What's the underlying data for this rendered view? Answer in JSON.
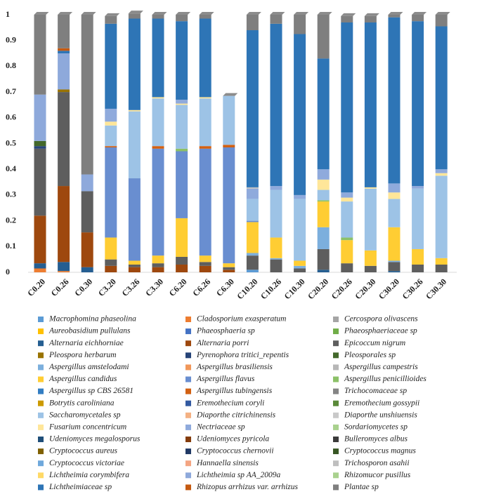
{
  "chart_data": {
    "type": "stacked_bar",
    "categories": [
      "C0.20",
      "C0.26",
      "C0.30",
      "C3.20",
      "C3.26",
      "C3.30",
      "C6.20",
      "C6.26",
      "C6.30",
      "C10.20",
      "C10.26",
      "C10.30",
      "C20.20",
      "C20.26",
      "C20.30",
      "C30.20",
      "C30.26",
      "C30.30"
    ],
    "ylim": [
      0,
      1
    ],
    "yticks": [
      0,
      0.1,
      0.2,
      0.3,
      0.4,
      0.5,
      0.6,
      0.7,
      0.8,
      0.9,
      1
    ],
    "series": [
      {
        "name": "Macrophomina phaseolina",
        "color": "#5b9bd5",
        "values": [
          0,
          0,
          0,
          0,
          0,
          0,
          0,
          0,
          0,
          0.01,
          0,
          0,
          0,
          0,
          0,
          0,
          0,
          0
        ]
      },
      {
        "name": "Cladosporium exasperatum",
        "color": "#ed7d31",
        "values": [
          0.015,
          0.005,
          0,
          0,
          0,
          0,
          0,
          0,
          0,
          0,
          0,
          0,
          0,
          0,
          0,
          0,
          0,
          0
        ]
      },
      {
        "name": "Cercospora olivascens",
        "color": "#a5a5a5",
        "values": [
          0,
          0,
          0,
          0,
          0,
          0,
          0,
          0,
          0,
          0,
          0,
          0,
          0,
          0,
          0,
          0,
          0,
          0
        ]
      },
      {
        "name": "Aureobasidium pullulans",
        "color": "#ffc000",
        "values": [
          0,
          0,
          0,
          0,
          0,
          0,
          0,
          0,
          0,
          0,
          0,
          0,
          0,
          0,
          0,
          0,
          0,
          0
        ]
      },
      {
        "name": "Phaeosphaeria sp",
        "color": "#4472c4",
        "values": [
          0,
          0,
          0,
          0,
          0,
          0,
          0,
          0,
          0,
          0,
          0,
          0,
          0,
          0,
          0,
          0,
          0,
          0
        ]
      },
      {
        "name": "Phaeosphaeriaceae sp",
        "color": "#70ad47",
        "values": [
          0,
          0,
          0,
          0,
          0,
          0,
          0,
          0,
          0,
          0,
          0,
          0,
          0,
          0,
          0,
          0,
          0,
          0
        ]
      },
      {
        "name": "Alternaria eichhorniae",
        "color": "#255e91",
        "values": [
          0.02,
          0.035,
          0.02,
          0,
          0,
          0,
          0,
          0,
          0,
          0,
          0,
          0,
          0.01,
          0,
          0,
          0.005,
          0,
          0
        ]
      },
      {
        "name": "Alternaria porri",
        "color": "#9e480e",
        "values": [
          0.185,
          0.295,
          0.135,
          0.025,
          0.02,
          0.02,
          0.03,
          0.025,
          0.01,
          0,
          0,
          0,
          0,
          0,
          0,
          0,
          0,
          0
        ]
      },
      {
        "name": "Epicoccum nigrum",
        "color": "#5e5e5e",
        "values": [
          0.26,
          0.365,
          0.16,
          0.025,
          0.01,
          0.015,
          0.03,
          0.015,
          0.01,
          0.055,
          0.05,
          0.015,
          0.08,
          0.035,
          0.025,
          0.035,
          0.03,
          0.03
        ]
      },
      {
        "name": "Pleospora herbarum",
        "color": "#997300",
        "values": [
          0,
          0.01,
          0,
          0,
          0,
          0,
          0,
          0,
          0,
          0,
          0,
          0,
          0,
          0,
          0,
          0,
          0,
          0
        ]
      },
      {
        "name": "Pyrenophora tritici_repentis",
        "color": "#264478",
        "values": [
          0.01,
          0,
          0,
          0,
          0,
          0,
          0,
          0,
          0,
          0,
          0,
          0,
          0,
          0,
          0,
          0,
          0,
          0
        ]
      },
      {
        "name": "Pleosporales sp",
        "color": "#43682b",
        "values": [
          0.02,
          0,
          0,
          0,
          0,
          0,
          0,
          0,
          0,
          0,
          0,
          0,
          0,
          0,
          0,
          0,
          0,
          0
        ]
      },
      {
        "name": "Aspergillus amstelodami",
        "color": "#7cafdd",
        "values": [
          0,
          0,
          0,
          0,
          0,
          0,
          0,
          0,
          0,
          0.01,
          0.005,
          0.01,
          0.085,
          0,
          0,
          0.005,
          0,
          0
        ]
      },
      {
        "name": "Aspergillus brasiliensis",
        "color": "#f1975a",
        "values": [
          0,
          0,
          0,
          0,
          0,
          0,
          0,
          0,
          0,
          0,
          0,
          0,
          0,
          0,
          0,
          0,
          0,
          0
        ]
      },
      {
        "name": "Aspergillus campestris",
        "color": "#b7b7b7",
        "values": [
          0,
          0,
          0,
          0,
          0,
          0,
          0,
          0,
          0,
          0,
          0,
          0,
          0,
          0,
          0,
          0,
          0,
          0
        ]
      },
      {
        "name": "Aspergillus candidus",
        "color": "#ffcd33",
        "values": [
          0,
          0,
          0,
          0.085,
          0.015,
          0.03,
          0.15,
          0.025,
          0.015,
          0.12,
          0.08,
          0.02,
          0.1,
          0.09,
          0.06,
          0.13,
          0.06,
          0.025
        ]
      },
      {
        "name": "Aspergillus flavus",
        "color": "#698ed0",
        "values": [
          0,
          0,
          0,
          0.35,
          0.32,
          0.415,
          0.26,
          0.415,
          0.45,
          0.005,
          0,
          0,
          0,
          0,
          0,
          0,
          0,
          0
        ]
      },
      {
        "name": "Aspergillus penicillioides",
        "color": "#8cc168",
        "values": [
          0,
          0,
          0,
          0,
          0,
          0,
          0.01,
          0,
          0,
          0,
          0,
          0,
          0.005,
          0.01,
          0,
          0,
          0,
          0
        ]
      },
      {
        "name": "Aspergillus sp CBS 26581",
        "color": "#327dc2",
        "values": [
          0,
          0,
          0,
          0,
          0,
          0,
          0,
          0,
          0,
          0,
          0,
          0,
          0,
          0,
          0,
          0,
          0,
          0
        ]
      },
      {
        "name": "Aspergillus tubingensis",
        "color": "#d26012",
        "values": [
          0,
          0,
          0,
          0.005,
          0,
          0.01,
          0,
          0.01,
          0.01,
          0,
          0,
          0,
          0,
          0,
          0,
          0,
          0,
          0
        ]
      },
      {
        "name": "Trichocomaceae sp",
        "color": "#848484",
        "values": [
          0,
          0,
          0,
          0,
          0,
          0,
          0,
          0,
          0,
          0,
          0,
          0,
          0,
          0,
          0,
          0,
          0,
          0
        ]
      },
      {
        "name": "Botrytis caroliniana",
        "color": "#cc9a00",
        "values": [
          0,
          0,
          0,
          0,
          0,
          0,
          0,
          0,
          0,
          0,
          0,
          0,
          0,
          0,
          0,
          0,
          0,
          0
        ]
      },
      {
        "name": "Eremothecium coryli",
        "color": "#335aa1",
        "values": [
          0,
          0,
          0,
          0,
          0,
          0,
          0,
          0,
          0,
          0,
          0,
          0,
          0,
          0,
          0,
          0,
          0,
          0
        ]
      },
      {
        "name": "Eremothecium gossypii",
        "color": "#5a8a39",
        "values": [
          0,
          0,
          0,
          0,
          0,
          0,
          0,
          0,
          0,
          0,
          0,
          0,
          0,
          0,
          0,
          0,
          0,
          0
        ]
      },
      {
        "name": "Saccharomycetales sp",
        "color": "#9dc3e6",
        "values": [
          0,
          0,
          0,
          0.08,
          0.26,
          0.185,
          0.17,
          0.185,
          0.19,
          0.085,
          0.185,
          0.24,
          0.04,
          0.14,
          0.24,
          0.11,
          0.235,
          0.32
        ]
      },
      {
        "name": "Diaporthe citrichinensis",
        "color": "#f4b183",
        "values": [
          0,
          0,
          0,
          0,
          0,
          0,
          0,
          0,
          0,
          0,
          0,
          0,
          0,
          0,
          0,
          0,
          0,
          0
        ]
      },
      {
        "name": "Diaporthe unshiuensis",
        "color": "#c9c9c9",
        "values": [
          0,
          0,
          0,
          0,
          0,
          0,
          0,
          0,
          0,
          0,
          0,
          0,
          0,
          0,
          0,
          0,
          0,
          0
        ]
      },
      {
        "name": "Fusarium concentricum",
        "color": "#ffe699",
        "values": [
          0,
          0,
          0,
          0.015,
          0.005,
          0.005,
          0.005,
          0.005,
          0,
          0,
          0,
          0,
          0.04,
          0.015,
          0.005,
          0.025,
          0,
          0.01
        ]
      },
      {
        "name": "Nectriaceae sp",
        "color": "#8faadc",
        "values": [
          0,
          0,
          0,
          0.05,
          0,
          0,
          0.015,
          0,
          0,
          0.04,
          0.015,
          0.015,
          0.04,
          0.02,
          0,
          0.035,
          0,
          0.015
        ]
      },
      {
        "name": "Sordariomycetes sp",
        "color": "#a9d18e",
        "values": [
          0,
          0,
          0,
          0,
          0,
          0,
          0,
          0,
          0,
          0,
          0,
          0,
          0,
          0,
          0,
          0,
          0,
          0
        ]
      },
      {
        "name": "Udeniomyces megalosporus",
        "color": "#1f4e79",
        "values": [
          0,
          0,
          0,
          0,
          0,
          0,
          0,
          0,
          0,
          0,
          0,
          0,
          0,
          0,
          0,
          0,
          0,
          0
        ]
      },
      {
        "name": "Udeniomyces pyricola",
        "color": "#843c0c",
        "values": [
          0,
          0,
          0,
          0,
          0,
          0,
          0,
          0,
          0,
          0,
          0,
          0,
          0,
          0,
          0,
          0,
          0,
          0
        ]
      },
      {
        "name": "Bulleromyces albus",
        "color": "#3b3b3b",
        "values": [
          0,
          0,
          0,
          0,
          0,
          0,
          0,
          0,
          0,
          0,
          0,
          0,
          0,
          0,
          0,
          0,
          0,
          0
        ]
      },
      {
        "name": "Cryptococcus aureus",
        "color": "#7f6000",
        "values": [
          0,
          0,
          0,
          0,
          0,
          0,
          0,
          0,
          0,
          0,
          0,
          0,
          0,
          0,
          0,
          0,
          0,
          0
        ]
      },
      {
        "name": "Cryptococcus chernovii",
        "color": "#203864",
        "values": [
          0,
          0,
          0,
          0,
          0,
          0,
          0,
          0,
          0,
          0,
          0,
          0,
          0,
          0,
          0,
          0,
          0,
          0
        ]
      },
      {
        "name": "Cryptococcus magnus",
        "color": "#375623",
        "values": [
          0,
          0,
          0,
          0,
          0,
          0,
          0,
          0,
          0,
          0,
          0,
          0,
          0,
          0,
          0,
          0,
          0,
          0
        ]
      },
      {
        "name": "Cryptococcus victoriae",
        "color": "#6fa8dc",
        "values": [
          0,
          0,
          0,
          0,
          0,
          0,
          0,
          0,
          0,
          0,
          0,
          0,
          0,
          0,
          0,
          0,
          0,
          0
        ]
      },
      {
        "name": "Hannaella sinensis",
        "color": "#f4a582",
        "values": [
          0,
          0,
          0,
          0,
          0,
          0,
          0,
          0,
          0,
          0,
          0,
          0,
          0,
          0,
          0,
          0,
          0,
          0
        ]
      },
      {
        "name": "Trichosporon asahii",
        "color": "#bfbfbf",
        "values": [
          0,
          0,
          0,
          0,
          0,
          0,
          0,
          0,
          0,
          0.005,
          0,
          0,
          0,
          0,
          0,
          0,
          0,
          0
        ]
      },
      {
        "name": "Lichtheimia corymbifera",
        "color": "#ffd966",
        "values": [
          0,
          0,
          0,
          0,
          0,
          0,
          0,
          0,
          0,
          0,
          0,
          0,
          0,
          0,
          0,
          0,
          0,
          0
        ]
      },
      {
        "name": "Lichtheimia sp AA_2009a",
        "color": "#8ea9db",
        "values": [
          0.18,
          0.14,
          0.065,
          0,
          0,
          0,
          0,
          0,
          0,
          0,
          0,
          0,
          0,
          0,
          0,
          0,
          0.01,
          0
        ]
      },
      {
        "name": "Rhizomucor pusillus",
        "color": "#a9d18e",
        "values": [
          0,
          0,
          0,
          0,
          0,
          0,
          0,
          0,
          0,
          0,
          0,
          0,
          0,
          0,
          0,
          0,
          0,
          0
        ]
      },
      {
        "name": "Lichtheimiaceae sp",
        "color": "#2e75b6",
        "values": [
          0,
          0.01,
          0,
          0.33,
          0.355,
          0.305,
          0.305,
          0.305,
          0,
          0.61,
          0.63,
          0.625,
          0.43,
          0.66,
          0.64,
          0.645,
          0.64,
          0.555
        ]
      },
      {
        "name": "Rhizopus arrhizus var. arrhizus",
        "color": "#c55a11",
        "values": [
          0,
          0.01,
          0,
          0,
          0,
          0,
          0,
          0,
          0,
          0,
          0,
          0,
          0,
          0,
          0,
          0,
          0,
          0
        ]
      },
      {
        "name": "Plantae sp",
        "color": "#7f7f7f",
        "values": [
          0.31,
          0.13,
          0.62,
          0.03,
          0.02,
          0.015,
          0.025,
          0.015,
          0,
          0.06,
          0.035,
          0.075,
          0.17,
          0.025,
          0.025,
          0.01,
          0.025,
          0.045
        ]
      }
    ]
  }
}
